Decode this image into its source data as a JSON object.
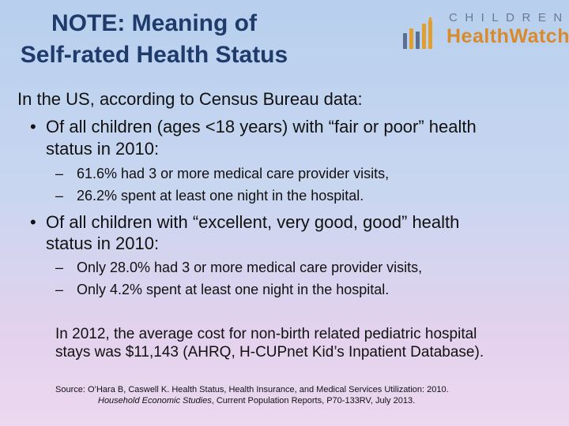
{
  "title": {
    "line1": "NOTE: Meaning of",
    "line2": "Self-rated Health Status"
  },
  "logo": {
    "top": "CHILDREN'S",
    "bottom": "HealthWatch",
    "accent_color": "#d88a2c",
    "bar_colors": [
      "#5a6f94",
      "#e0a030"
    ]
  },
  "intro": "In the US, according to Census Bureau data:",
  "bullets": [
    {
      "text_line1": "Of all children (ages <18 years) with “fair or poor” health",
      "text_line2": "status in 2010:",
      "subs": [
        "61.6% had 3 or more medical care provider visits,",
        "26.2% spent at least one night in the hospital."
      ]
    },
    {
      "text_line1": "Of all children with “excellent, very good, good” health",
      "text_line2": "status in 2010:",
      "subs": [
        "Only 28.0% had 3 or more medical care provider visits,",
        "Only 4.2% spent at least one night in the hospital."
      ]
    }
  ],
  "paragraph": {
    "line1": "In 2012, the average cost for non-birth related pediatric hospital",
    "line2": "stays was $11,143 (AHRQ, H-CUPnet Kid’s Inpatient Database)."
  },
  "source": {
    "line1": "Source: O’Hara B, Caswell K. Health Status, Health Insurance, and Medical Services Utilization: 2010.",
    "line2_italic": "Household Economic Studies",
    "line2_rest": ", Current Population Reports, P70-133RV, July 2013."
  },
  "bullet_glyph": "•",
  "dash_glyph": "–"
}
